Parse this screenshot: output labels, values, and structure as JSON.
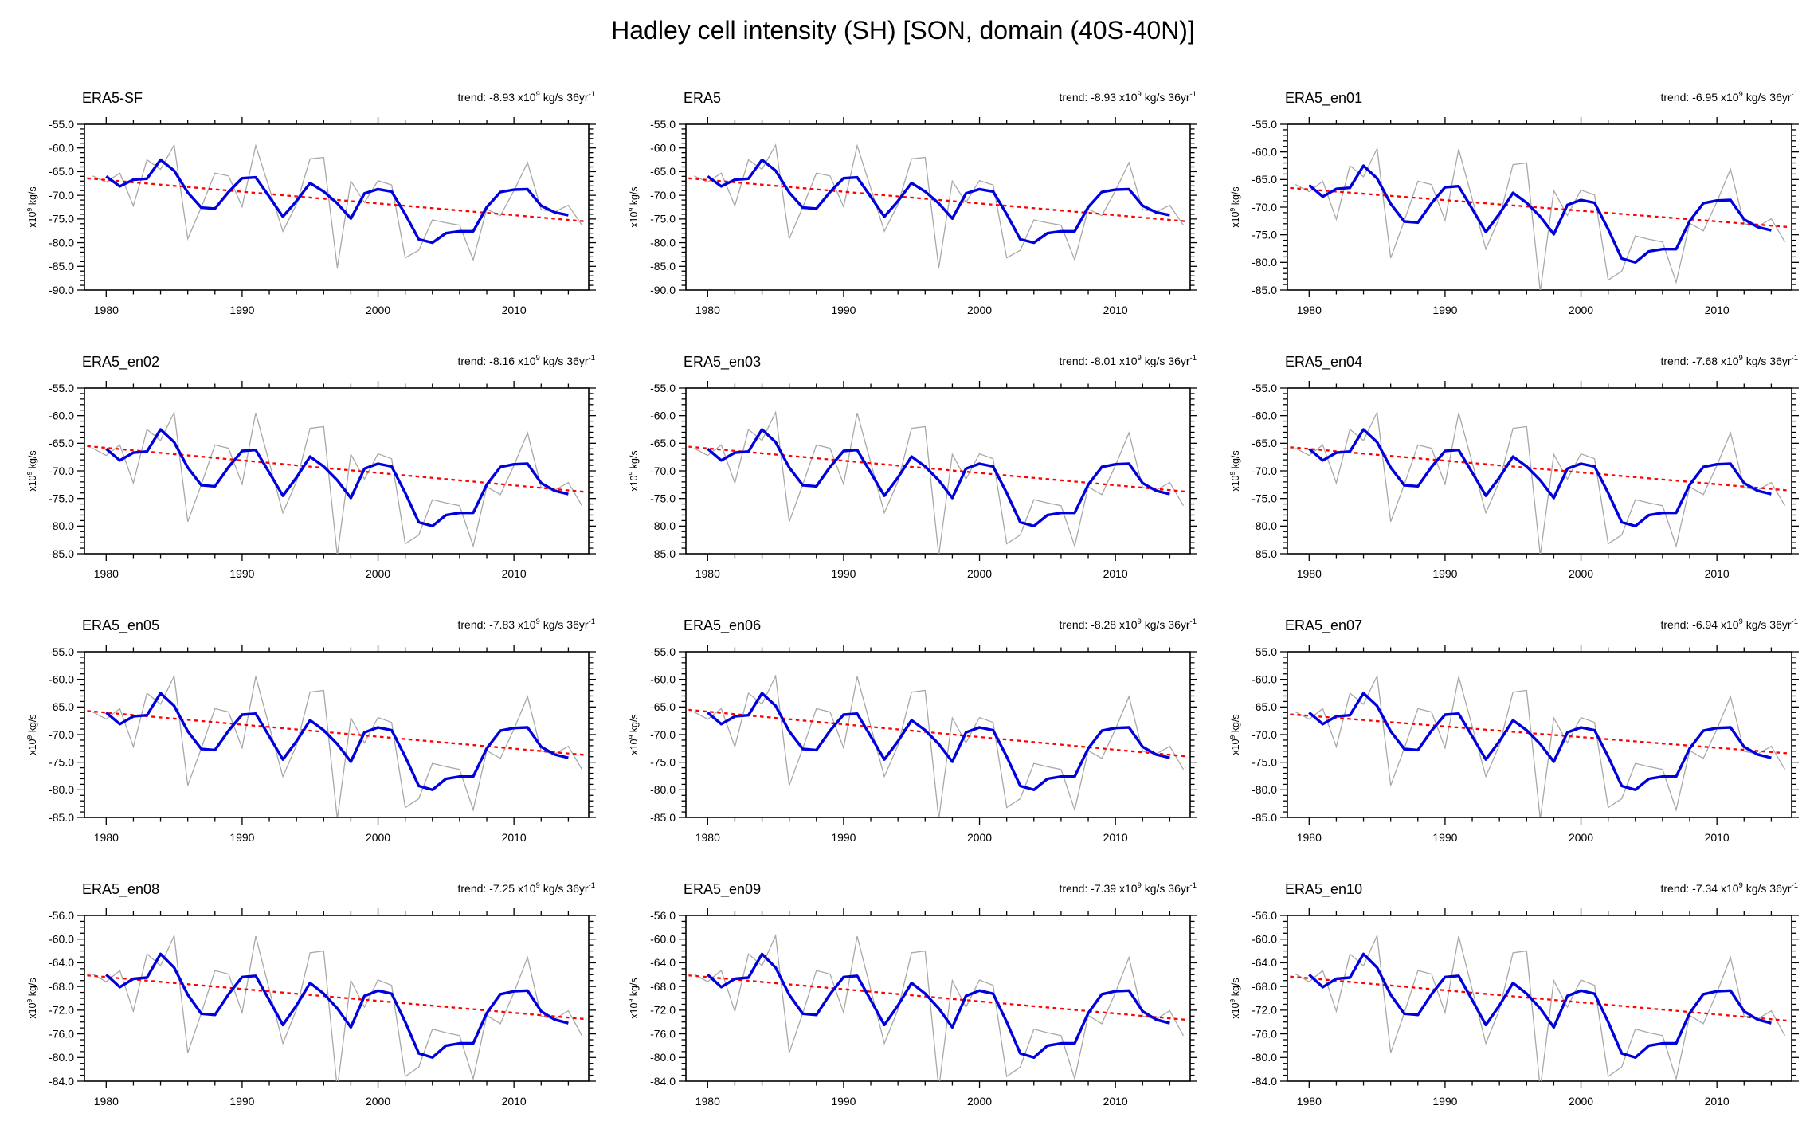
{
  "title": "Hadley cell intensity (SH) [SON, domain (40S-40N)]",
  "chart_data": {
    "type": "line",
    "suptitle": "Hadley cell intensity (SH) [SON, domain (40S-40N)]",
    "description": "12-panel grid of yearly Hadley cell intensity time series: thin gray annual values, thick blue smoothed curve, red dashed linear trend.",
    "xlim": [
      1978.4,
      2015.5
    ],
    "xticks": [
      1980,
      1990,
      2000,
      2010
    ],
    "x_minor_step": 2,
    "y_minor_step": 1,
    "ylabel_parts": {
      "base": "x10",
      "exp": "9",
      "rest": " kg/s"
    },
    "trend_label_parts": {
      "prefix": "trend: ",
      "x10": " x10",
      "exp": "9",
      "units": " kg/s 36yr",
      "units_exp": "-1"
    },
    "years_annual": [
      1979,
      1980,
      1981,
      1982,
      1983,
      1984,
      1985,
      1986,
      1987,
      1988,
      1989,
      1990,
      1991,
      1992,
      1993,
      1994,
      1995,
      1996,
      1997,
      1998,
      1999,
      2000,
      2001,
      2002,
      2003,
      2004,
      2005,
      2006,
      2007,
      2008,
      2009,
      2010,
      2011,
      2012,
      2013,
      2014,
      2015
    ],
    "annual_values": [
      -65.9,
      -67.2,
      -65.3,
      -72.2,
      -62.5,
      -64.5,
      -59.4,
      -79.2,
      -72.5,
      -65.3,
      -65.9,
      -72.4,
      -59.5,
      -68.5,
      -77.6,
      -71.9,
      -62.3,
      -62.0,
      -85.3,
      -67.0,
      -71.5,
      -66.9,
      -67.8,
      -83.2,
      -81.6,
      -75.2,
      -75.8,
      -76.3,
      -83.6,
      -72.9,
      -74.3,
      -69.0,
      -63.1,
      -73.0,
      -73.5,
      -72.1,
      -76.3
    ],
    "years_smoothed": [
      1980,
      1981,
      1982,
      1983,
      1984,
      1985,
      1986,
      1987,
      1988,
      1989,
      1990,
      1991,
      1992,
      1993,
      1994,
      1995,
      1996,
      1997,
      1998,
      1999,
      2000,
      2001,
      2002,
      2003,
      2004,
      2005,
      2006,
      2007,
      2008,
      2009,
      2010,
      2011,
      2012,
      2013,
      2014
    ],
    "smoothed_values": [
      -66.0,
      -68.1,
      -66.7,
      -66.5,
      -62.5,
      -64.8,
      -69.4,
      -72.6,
      -72.8,
      -69.3,
      -66.4,
      -66.2,
      -70.3,
      -74.5,
      -71.2,
      -67.4,
      -69.2,
      -71.7,
      -74.9,
      -69.6,
      -68.7,
      -69.2,
      -74.0,
      -79.3,
      -80.0,
      -78.0,
      -77.6,
      -77.6,
      -72.5,
      -69.3,
      -68.8,
      -68.7,
      -72.2,
      -73.6,
      -74.2
    ],
    "colors": {
      "annual": "#a8a8a8",
      "smoothed": "#0000dd",
      "trend": "#ff0000",
      "axis": "#000000"
    },
    "panels": [
      {
        "title": "ERA5-SF",
        "trend": "-8.93",
        "ylim": [
          -90,
          -55
        ],
        "ystep": 5,
        "trend_y1979": -66.5
      },
      {
        "title": "ERA5",
        "trend": "-8.93",
        "ylim": [
          -90,
          -55
        ],
        "ystep": 5,
        "trend_y1979": -66.5
      },
      {
        "title": "ERA5_en01",
        "trend": "-6.95",
        "ylim": [
          -85,
          -55
        ],
        "ystep": 5,
        "trend_y1979": -66.6
      },
      {
        "title": "ERA5_en02",
        "trend": "-8.16",
        "ylim": [
          -85,
          -55
        ],
        "ystep": 5,
        "trend_y1979": -65.6
      },
      {
        "title": "ERA5_en03",
        "trend": "-8.01",
        "ylim": [
          -85,
          -55
        ],
        "ystep": 5,
        "trend_y1979": -65.7
      },
      {
        "title": "ERA5_en04",
        "trend": "-7.68",
        "ylim": [
          -85,
          -55
        ],
        "ystep": 5,
        "trend_y1979": -65.8
      },
      {
        "title": "ERA5_en05",
        "trend": "-7.83",
        "ylim": [
          -85,
          -55
        ],
        "ystep": 5,
        "trend_y1979": -65.8
      },
      {
        "title": "ERA5_en06",
        "trend": "-8.28",
        "ylim": [
          -85,
          -55
        ],
        "ystep": 5,
        "trend_y1979": -65.6
      },
      {
        "title": "ERA5_en07",
        "trend": "-6.94",
        "ylim": [
          -85,
          -55
        ],
        "ystep": 5,
        "trend_y1979": -66.4
      },
      {
        "title": "ERA5_en08",
        "trend": "-7.25",
        "ylim": [
          -84,
          -56
        ],
        "ystep": 4,
        "trend_y1979": -66.2
      },
      {
        "title": "ERA5_en09",
        "trend": "-7.39",
        "ylim": [
          -84,
          -56
        ],
        "ystep": 4,
        "trend_y1979": -66.2
      },
      {
        "title": "ERA5_en10",
        "trend": "-7.34",
        "ylim": [
          -84,
          -56
        ],
        "ystep": 4,
        "trend_y1979": -66.4
      }
    ]
  }
}
